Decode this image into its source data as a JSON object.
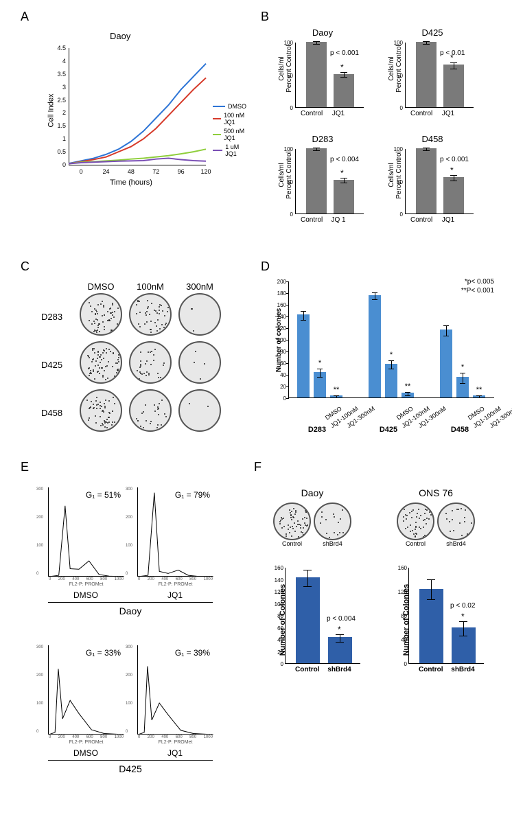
{
  "panels": {
    "A": "A",
    "B": "B",
    "C": "C",
    "D": "D",
    "E": "E",
    "F": "F"
  },
  "colors": {
    "dmso": "#2e75d6",
    "jq1_100nm": "#d63a2a",
    "jq1_500nm": "#8fce3c",
    "jq1_1um": "#7a4fb5",
    "bar_gray": "#7a7a7a",
    "bar_blue": "#4a8ed1",
    "bar_darkblue": "#2f5fa8",
    "axis": "#000000",
    "background": "#ffffff",
    "dish_bg": "#e8e8e8",
    "dish_border": "#555555"
  },
  "panelA": {
    "title": "Daoy",
    "xlabel": "Time (hours)",
    "ylabel": "Cell Index",
    "xlim": [
      -12,
      120
    ],
    "ylim": [
      0,
      4.5
    ],
    "xticks": [
      0,
      24,
      48,
      72,
      96,
      120
    ],
    "yticks": [
      0,
      0.5,
      1,
      1.5,
      2,
      2.5,
      3,
      3.5,
      4,
      4.5
    ],
    "title_fontsize": 13,
    "label_fontsize": 11,
    "series": [
      {
        "name": "DMSO",
        "color": "#2e75d6",
        "points": [
          [
            -12,
            0.05
          ],
          [
            0,
            0.15
          ],
          [
            12,
            0.25
          ],
          [
            24,
            0.4
          ],
          [
            36,
            0.6
          ],
          [
            48,
            0.9
          ],
          [
            60,
            1.3
          ],
          [
            72,
            1.8
          ],
          [
            84,
            2.3
          ],
          [
            96,
            2.9
          ],
          [
            108,
            3.4
          ],
          [
            120,
            3.9
          ]
        ]
      },
      {
        "name": "100 nM JQ1",
        "color": "#d63a2a",
        "points": [
          [
            -12,
            0.04
          ],
          [
            0,
            0.12
          ],
          [
            12,
            0.2
          ],
          [
            24,
            0.3
          ],
          [
            36,
            0.5
          ],
          [
            48,
            0.7
          ],
          [
            60,
            1.0
          ],
          [
            72,
            1.4
          ],
          [
            84,
            1.9
          ],
          [
            96,
            2.4
          ],
          [
            108,
            2.9
          ],
          [
            120,
            3.35
          ]
        ]
      },
      {
        "name": "500 nM JQ1",
        "color": "#8fce3c",
        "points": [
          [
            -12,
            0.04
          ],
          [
            0,
            0.1
          ],
          [
            12,
            0.12
          ],
          [
            24,
            0.15
          ],
          [
            36,
            0.18
          ],
          [
            48,
            0.22
          ],
          [
            60,
            0.25
          ],
          [
            72,
            0.3
          ],
          [
            84,
            0.35
          ],
          [
            96,
            0.42
          ],
          [
            108,
            0.5
          ],
          [
            120,
            0.6
          ]
        ]
      },
      {
        "name": "1 uM JQ1",
        "color": "#7a4fb5",
        "points": [
          [
            -12,
            0.04
          ],
          [
            0,
            0.08
          ],
          [
            12,
            0.1
          ],
          [
            24,
            0.12
          ],
          [
            36,
            0.14
          ],
          [
            48,
            0.15
          ],
          [
            60,
            0.16
          ],
          [
            72,
            0.22
          ],
          [
            84,
            0.25
          ],
          [
            96,
            0.2
          ],
          [
            108,
            0.16
          ],
          [
            120,
            0.14
          ]
        ]
      }
    ]
  },
  "panelB": {
    "ylabel": "Cells/ml\nPercent Control",
    "ylim": [
      0,
      100
    ],
    "yticks": [
      0,
      50,
      100
    ],
    "bar_color": "#7a7a7a",
    "charts": [
      {
        "title": "Daoy",
        "control": 100,
        "jq1": 51,
        "control_err": 2,
        "jq1_err": 4,
        "pval": "p < 0.001",
        "xlabels": [
          "Control",
          "JQ1"
        ]
      },
      {
        "title": "D425",
        "control": 100,
        "jq1": 65,
        "control_err": 2,
        "jq1_err": 5,
        "pval": "p < 0.01",
        "xlabels": [
          "Control",
          "JQ1"
        ]
      },
      {
        "title": "D283",
        "control": 100,
        "jq1": 52,
        "control_err": 2,
        "jq1_err": 4,
        "pval": "p < 0.004",
        "xlabels": [
          "Control",
          "JQ 1"
        ]
      },
      {
        "title": "D458",
        "control": 100,
        "jq1": 56,
        "control_err": 2,
        "jq1_err": 4,
        "pval": "p < 0.001",
        "xlabels": [
          "Control",
          "JQ1"
        ]
      }
    ]
  },
  "panelC": {
    "col_headers": [
      "DMSO",
      "100nM",
      "300nM"
    ],
    "row_headers": [
      "D283",
      "D425",
      "D458"
    ],
    "colony_density": [
      [
        60,
        45,
        3
      ],
      [
        70,
        30,
        4
      ],
      [
        55,
        25,
        2
      ]
    ]
  },
  "panelD": {
    "ylabel": "Number of colonies",
    "ylim": [
      0,
      200
    ],
    "yticks": [
      0,
      20,
      40,
      60,
      80,
      100,
      120,
      140,
      160,
      180,
      200
    ],
    "bar_color": "#4a8ed1",
    "significance_note_1": "*p< 0.005",
    "significance_note_2": "**P< 0.001",
    "groups": [
      {
        "name": "D283",
        "bars": [
          {
            "label": "DMSO",
            "value": 142,
            "err": 8,
            "sig": ""
          },
          {
            "label": "JQ1-100nM",
            "value": 44,
            "err": 7,
            "sig": "*"
          },
          {
            "label": "JQ1-300nM",
            "value": 3,
            "err": 2,
            "sig": "**"
          }
        ]
      },
      {
        "name": "D425",
        "bars": [
          {
            "label": "DMSO",
            "value": 175,
            "err": 6,
            "sig": ""
          },
          {
            "label": "JQ1-100nM",
            "value": 58,
            "err": 7,
            "sig": "*"
          },
          {
            "label": "JQ1-300nM",
            "value": 8,
            "err": 3,
            "sig": "**"
          }
        ]
      },
      {
        "name": "D458",
        "bars": [
          {
            "label": "DMSO",
            "value": 116,
            "err": 9,
            "sig": ""
          },
          {
            "label": "JQ1-100nM",
            "value": 35,
            "err": 9,
            "sig": "*"
          },
          {
            "label": "JQ1-300nM",
            "value": 3,
            "err": 2,
            "sig": "**"
          }
        ]
      }
    ]
  },
  "panelE": {
    "xlabel": "FL2-P: PROMet",
    "xticks": [
      "0",
      "200",
      "400",
      "600",
      "800",
      "1000"
    ],
    "yticks": [
      "0",
      "100",
      "200",
      "300"
    ],
    "plots": [
      {
        "cell_line": "Daoy",
        "cond": "DMSO",
        "g1": "G₁ = 51%",
        "row": 0,
        "col": 0,
        "curve": [
          [
            0,
            0
          ],
          [
            40,
            5
          ],
          [
            65,
            270
          ],
          [
            85,
            30
          ],
          [
            120,
            28
          ],
          [
            160,
            60
          ],
          [
            200,
            8
          ],
          [
            240,
            2
          ],
          [
            300,
            0
          ]
        ]
      },
      {
        "cell_line": "Daoy",
        "cond": "JQ1",
        "g1": "G₁ = 79%",
        "row": 0,
        "col": 1,
        "curve": [
          [
            0,
            0
          ],
          [
            40,
            5
          ],
          [
            65,
            320
          ],
          [
            85,
            20
          ],
          [
            120,
            12
          ],
          [
            160,
            25
          ],
          [
            200,
            5
          ],
          [
            240,
            1
          ],
          [
            300,
            0
          ]
        ]
      },
      {
        "cell_line": "D425",
        "cond": "DMSO",
        "g1": "G₁ = 33%",
        "row": 1,
        "col": 0,
        "curve": [
          [
            0,
            0
          ],
          [
            25,
            8
          ],
          [
            38,
            250
          ],
          [
            55,
            60
          ],
          [
            85,
            130
          ],
          [
            120,
            80
          ],
          [
            170,
            18
          ],
          [
            220,
            4
          ],
          [
            300,
            0
          ]
        ]
      },
      {
        "cell_line": "D425",
        "cond": "JQ1",
        "g1": "G₁ = 39%",
        "row": 1,
        "col": 1,
        "curve": [
          [
            0,
            0
          ],
          [
            25,
            8
          ],
          [
            38,
            260
          ],
          [
            55,
            55
          ],
          [
            85,
            120
          ],
          [
            120,
            75
          ],
          [
            170,
            16
          ],
          [
            220,
            4
          ],
          [
            300,
            0
          ]
        ]
      }
    ]
  },
  "panelF": {
    "ylabel": "Number of Colonies",
    "bar_color": "#2f5fa8",
    "subs": [
      {
        "title": "Daoy",
        "xlabels": [
          "Control",
          "shBrd4"
        ],
        "ylim": [
          0,
          160
        ],
        "yticks": [
          0,
          20,
          40,
          60,
          80,
          100,
          120,
          140,
          160
        ],
        "control": 143,
        "treat": 43,
        "control_err": 14,
        "treat_err": 6,
        "pval": "p < 0.004",
        "dish_density": [
          55,
          15
        ]
      },
      {
        "title": "ONS 76",
        "xlabels": [
          "Control",
          "shBrd4"
        ],
        "ylim": [
          0,
          160
        ],
        "yticks": [
          0,
          40,
          80,
          120,
          160
        ],
        "control": 124,
        "treat": 59,
        "control_err": 17,
        "treat_err": 12,
        "pval": "p < 0.02",
        "dish_density": [
          45,
          18
        ]
      }
    ]
  }
}
